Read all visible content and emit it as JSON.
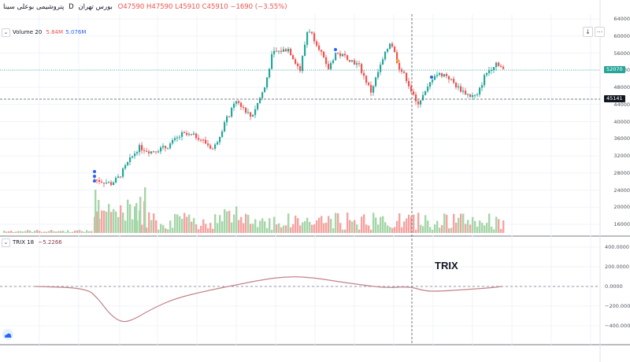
{
  "header": {
    "symbol_name": "پتروشیمی بوعلی سینا",
    "interval": "D",
    "exchange": "بورس تهران",
    "open": "O47590",
    "high": "H47590",
    "low": "L45910",
    "close": "C45910",
    "change": "−1690 (−3.55%)"
  },
  "volume_legend": {
    "label": "Volume 20",
    "value1": "5.84M",
    "value2": "5.076M"
  },
  "trix_legend": {
    "label": "TRIX 18",
    "value": "−5.2266"
  },
  "annotation": {
    "text": "TRIX"
  },
  "price_axis": {
    "labels": [
      "64000",
      "60000",
      "56000",
      "52000",
      "48000",
      "44000",
      "40000",
      "36000",
      "32000",
      "28000",
      "24000",
      "20000",
      "16000"
    ],
    "last_price_tag": "52070",
    "crosshair_tag": "45141"
  },
  "trix_axis": {
    "labels": [
      "400.0000",
      "200.0000",
      "0.0000",
      "−200.0000",
      "−400.0000"
    ]
  },
  "buttons": {
    "down_arrow": "↓",
    "more": "⋯",
    "collapse": "⌄"
  },
  "colors": {
    "up": "#26a69a",
    "down": "#ef5350",
    "vol_up": "#a5d6a7",
    "vol_down": "#f4a3a0",
    "trix_line": "#c2848b",
    "last_price": "#26a69a",
    "crosshair_tag": "#131722"
  }
}
